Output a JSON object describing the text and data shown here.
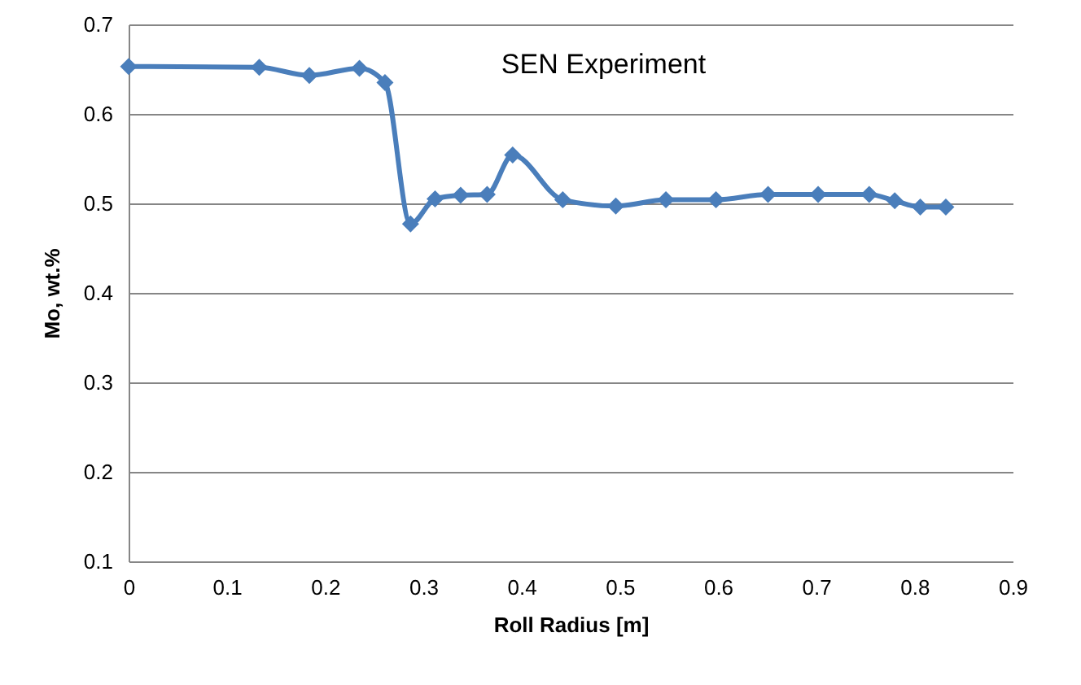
{
  "chart_data": {
    "type": "line",
    "title": "SEN Experiment",
    "xlabel": "Roll Radius [m]",
    "ylabel": "Mo, wt.%",
    "x": [
      0,
      0.133,
      0.184,
      0.235,
      0.261,
      0.287,
      0.312,
      0.338,
      0.365,
      0.391,
      0.442,
      0.496,
      0.547,
      0.598,
      0.651,
      0.702,
      0.754,
      0.78,
      0.806,
      0.832
    ],
    "series": [
      {
        "color": "#4a7ebb",
        "values": [
          0.653,
          0.652,
          0.643,
          0.651,
          0.635,
          0.477,
          0.505,
          0.509,
          0.51,
          0.554,
          0.504,
          0.497,
          0.504,
          0.504,
          0.51,
          0.51,
          0.51,
          0.503,
          0.496,
          0.496
        ]
      }
    ],
    "xlim": [
      0,
      0.9
    ],
    "xticks": [
      0,
      0.1,
      0.2,
      0.3,
      0.4,
      0.5,
      0.6,
      0.7,
      0.8,
      0.9
    ],
    "ylim": [
      0.1,
      0.7
    ],
    "yticks": [
      0.1,
      0.2,
      0.3,
      0.4,
      0.5,
      0.6,
      0.7
    ],
    "grid": "y",
    "marker": "diamond",
    "line_style": "solid"
  }
}
